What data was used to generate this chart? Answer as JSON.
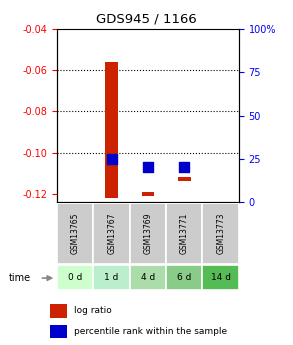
{
  "title": "GDS945 / 1166",
  "samples": [
    "GSM13765",
    "GSM13767",
    "GSM13769",
    "GSM13771",
    "GSM13773"
  ],
  "time_labels": [
    "0 d",
    "1 d",
    "4 d",
    "6 d",
    "14 d"
  ],
  "log_ratios_bottom": [
    null,
    -0.122,
    -0.121,
    -0.114,
    null
  ],
  "log_ratios_top": [
    null,
    -0.056,
    null,
    null,
    null
  ],
  "percentile_ranks": [
    null,
    25,
    20,
    20,
    null
  ],
  "ylim": [
    -0.124,
    -0.04
  ],
  "yticks_left": [
    -0.04,
    -0.06,
    -0.08,
    -0.1,
    -0.12
  ],
  "yticks_right": [
    100,
    75,
    50,
    25,
    0
  ],
  "bar_color": "#cc2200",
  "dot_color": "#0000cc",
  "bar_width": 0.35,
  "dot_size": 50,
  "time_label_colors": [
    "#ccffcc",
    "#bbeecc",
    "#aaddaa",
    "#88cc88",
    "#55bb55"
  ],
  "sample_bg_color": "#cccccc",
  "legend_log_ratio_color": "#cc2200",
  "legend_percentile_color": "#0000cc",
  "grid_dotted_at": [
    -0.06,
    -0.08,
    -0.1
  ]
}
